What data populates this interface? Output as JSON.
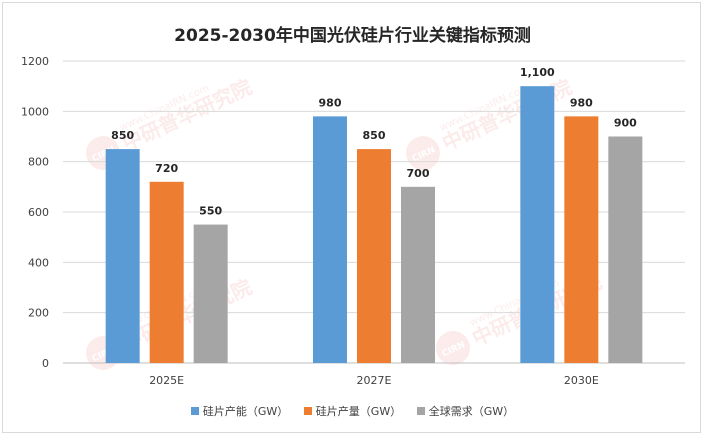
{
  "chart_data": {
    "type": "bar",
    "title": "2025-2030年中国光伏硅片行业关键指标预测",
    "categories": [
      "2025E",
      "2027E",
      "2030E"
    ],
    "ylim": [
      0,
      1200
    ],
    "yticks": [
      0,
      200,
      400,
      600,
      800,
      1000,
      1200
    ],
    "grid": true,
    "legend_position": "bottom",
    "series": [
      {
        "name": "硅片产能（GW）",
        "color": "#5b9bd5",
        "values": [
          850,
          980,
          1100
        ],
        "labels": [
          "850",
          "980",
          "1,100"
        ]
      },
      {
        "name": "硅片产量（GW）",
        "color": "#ed7d31",
        "values": [
          720,
          850,
          980
        ],
        "labels": [
          "720",
          "850",
          "980"
        ]
      },
      {
        "name": "全球需求（GW）",
        "color": "#a5a5a5",
        "values": [
          550,
          700,
          900
        ],
        "labels": [
          "550",
          "700",
          "900"
        ]
      }
    ]
  },
  "watermark": {
    "brand": "中研普华研究院",
    "url": "www.ChinaIRN.com",
    "logo": "CIRN"
  }
}
